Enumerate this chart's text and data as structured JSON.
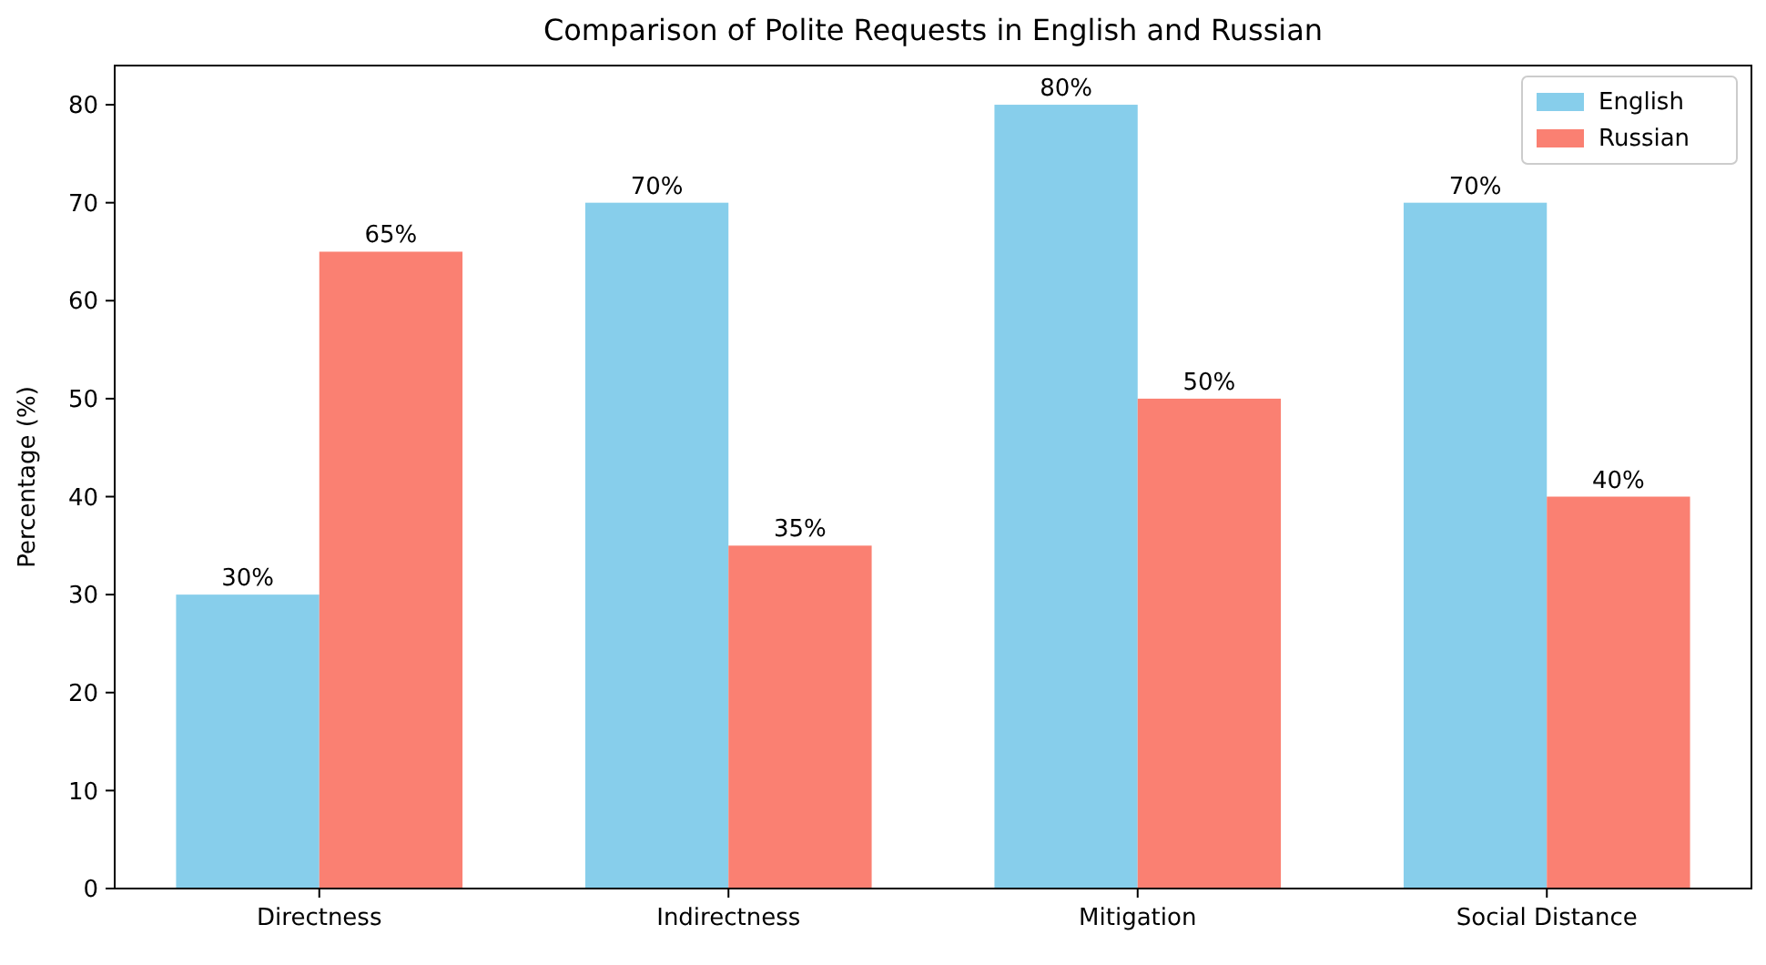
{
  "chart_data": {
    "type": "bar",
    "title": "Comparison of Polite Requests in English and Russian",
    "ylabel": "Percentage (%)",
    "categories": [
      "Directness",
      "Indirectness",
      "Mitigation",
      "Social Distance"
    ],
    "series": [
      {
        "name": "English",
        "color": "#87ceeb",
        "values": [
          30,
          70,
          80,
          70
        ],
        "value_labels": [
          "30%",
          "70%",
          "80%",
          "70%"
        ]
      },
      {
        "name": "Russian",
        "color": "#fa8072",
        "values": [
          65,
          35,
          50,
          40
        ],
        "value_labels": [
          "65%",
          "35%",
          "50%",
          "40%"
        ]
      }
    ],
    "ylim": [
      0,
      84
    ],
    "yticks": [
      0,
      10,
      20,
      30,
      40,
      50,
      60,
      70,
      80
    ],
    "legend": "top right"
  }
}
